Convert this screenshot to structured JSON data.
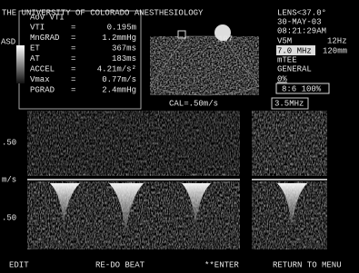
{
  "header": {
    "title": "THE UNIVERSITY OF COLORADO ANESTHESIOLOGY"
  },
  "settings": {
    "lens": "LENS<37.0°",
    "date": "30-MAY-03",
    "time": "08:21:29AM",
    "probe": "V5M",
    "frame_rate": "12Hz",
    "frequency": "7.0 MHz",
    "depth": "120mm",
    "mode": "mTEE",
    "preset": "GENERAL",
    "power": "0%",
    "gain": "8:6 100%"
  },
  "measurement": {
    "side_label": "ASD",
    "title": "AoV VTI",
    "separator": "=",
    "rows": [
      {
        "label": "VTI",
        "value": "0.195m"
      },
      {
        "label": "MnGRAD",
        "value": "1.2mmHg"
      },
      {
        "label": "ET",
        "value": "367ms"
      },
      {
        "label": "AT",
        "value": "183ms"
      },
      {
        "label": "ACCEL",
        "value": "4.21m/s²"
      },
      {
        "label": "Vmax",
        "value": "0.77m/s"
      },
      {
        "label": "PGRAD",
        "value": "2.4mmHg"
      }
    ]
  },
  "image": {
    "angle": "107"
  },
  "doppler": {
    "cal": "CAL=.50m/s",
    "frequency": "3.5MHz",
    "scale_top": ".50",
    "unit": "m/s",
    "scale_bottom": ".50"
  },
  "menu": [
    "EDIT",
    "RE-DO BEAT",
    "**ENTER",
    "RETURN TO MENU"
  ]
}
